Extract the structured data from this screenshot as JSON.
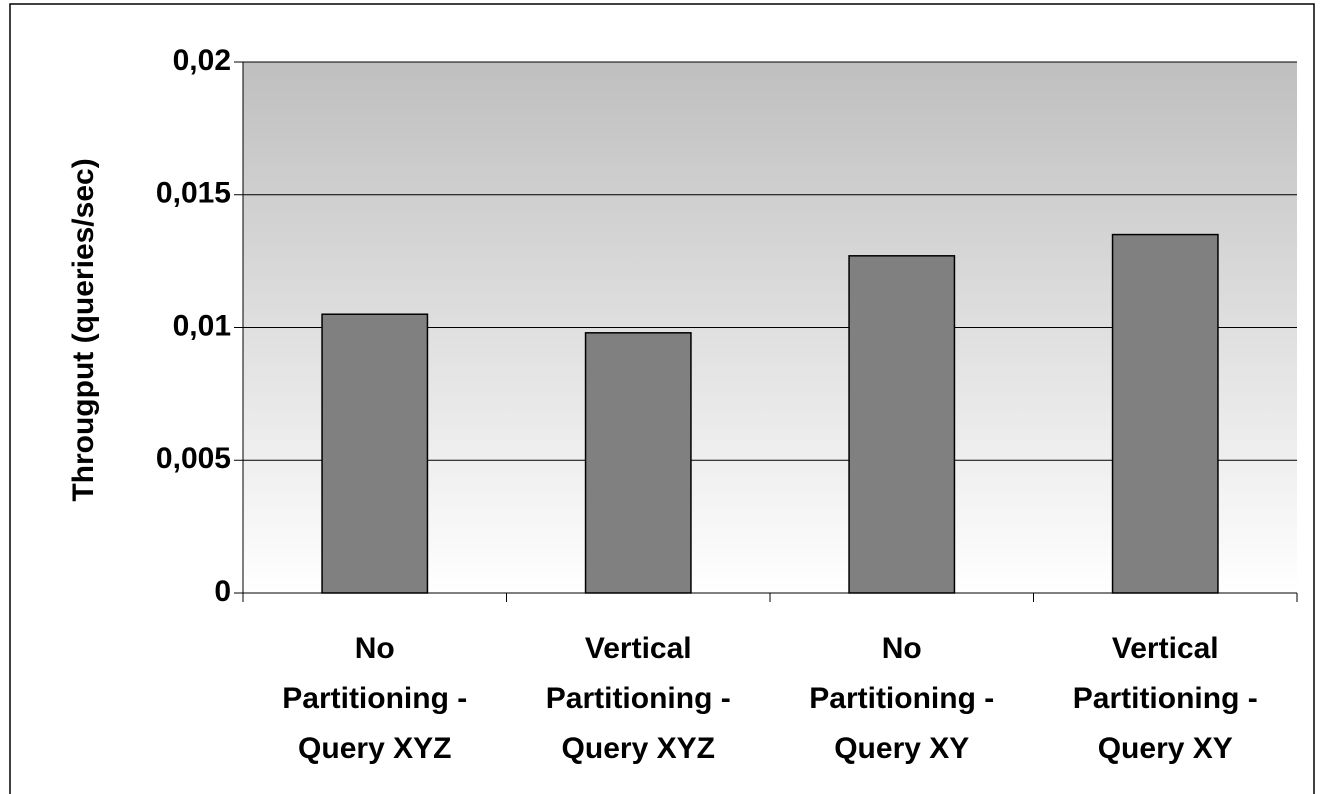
{
  "chart_data": {
    "type": "bar",
    "y_label": "Througput (queries/sec)",
    "categories": [
      "No Partitioning - Query XYZ",
      "Vertical Partitioning - Query XYZ",
      "No Partitioning - Query XY",
      "Vertical Partitioning - Query XY"
    ],
    "values": [
      0.0105,
      0.0098,
      0.0127,
      0.0135
    ],
    "color": "#808080",
    "ylim": [
      0,
      0.02
    ],
    "yticks": [
      0,
      {
        "value": 0.005,
        "label": "0,005"
      },
      {
        "value": 0.01,
        "label": "0,01"
      },
      {
        "value": 0.015,
        "label": "0,015"
      },
      {
        "value": 0.02,
        "label": "0,02"
      }
    ],
    "grid": true
  }
}
